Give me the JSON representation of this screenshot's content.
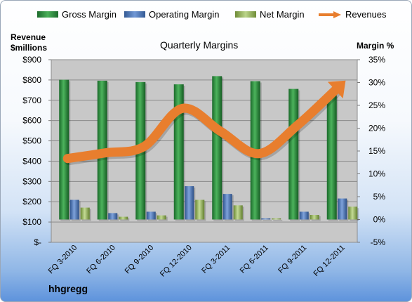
{
  "chart_data": {
    "type": "bar",
    "title": "Quarterly Margins",
    "categories": [
      "FQ 3-2010",
      "FQ 6-2010",
      "FQ 9-2010",
      "FQ 12-2010",
      "FQ 3-2011",
      "FQ 6-2011",
      "FQ 9-2011",
      "FQ 12-2011"
    ],
    "y_left": {
      "label_line1": "Revenue",
      "label_line2": "$millions",
      "ticks": [
        "$-",
        "$100",
        "$200",
        "$300",
        "$400",
        "$500",
        "$600",
        "$700",
        "$800",
        "$900"
      ],
      "ylim": [
        0,
        900
      ]
    },
    "y_right": {
      "label": "Margin %",
      "ticks": [
        "-5%",
        "0%",
        "5%",
        "10%",
        "15%",
        "20%",
        "25%",
        "30%",
        "35%"
      ],
      "ylim": [
        -5,
        35
      ]
    },
    "series": [
      {
        "name": "Gross Margin",
        "type": "bar",
        "axis": "right",
        "color": "#2e8b3e",
        "values": [
          30.6,
          30.4,
          30.1,
          29.6,
          31.4,
          30.3,
          28.6,
          27.2
        ]
      },
      {
        "name": "Operating Margin",
        "type": "bar",
        "axis": "right",
        "color": "#4a74b8",
        "values": [
          4.3,
          1.4,
          1.7,
          7.3,
          5.6,
          0.1,
          1.7,
          4.6
        ]
      },
      {
        "name": "Net Margin",
        "type": "bar",
        "axis": "right",
        "color": "#9bbb59",
        "values": [
          2.6,
          0.6,
          0.9,
          4.3,
          3.1,
          0.0,
          1.0,
          2.8
        ]
      },
      {
        "name": "Revenues",
        "type": "line",
        "axis": "left",
        "color": "#e87e2e",
        "values": [
          413,
          441,
          472,
          660,
          547,
          437,
          575,
          750
        ]
      }
    ],
    "legend_position": "top",
    "grid": true
  },
  "brand": "hhgregg"
}
